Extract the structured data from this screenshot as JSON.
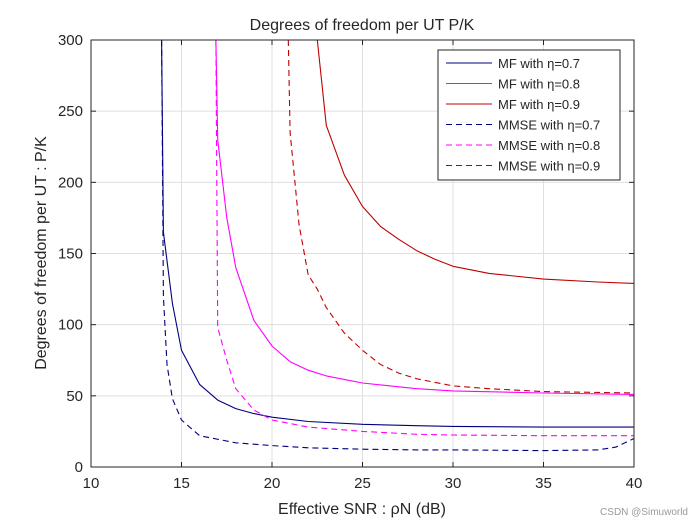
{
  "chart_data": {
    "type": "line",
    "title": "Degrees of freedom per UT P/K",
    "xlabel": "Effective SNR : ρN (dB)",
    "ylabel": "Degrees of freedom per UT : P/K",
    "xlim": [
      10,
      40
    ],
    "ylim": [
      0,
      300
    ],
    "xticks": [
      10,
      15,
      20,
      25,
      30,
      35,
      40
    ],
    "yticks": [
      0,
      50,
      100,
      150,
      200,
      250,
      300
    ],
    "grid": true,
    "legend_position": "top-right",
    "series": [
      {
        "name": "MF with η=0.7",
        "color": "#00007f",
        "style": "solid",
        "x": [
          13.9,
          14.0,
          14.5,
          15.0,
          16.0,
          17.0,
          18.0,
          19.0,
          20.0,
          22.0,
          25.0,
          28.0,
          30.0,
          35.0,
          40.0
        ],
        "y": [
          300,
          165,
          115,
          82,
          58,
          47,
          41,
          37.5,
          35,
          32,
          30,
          29,
          28.5,
          28,
          28
        ]
      },
      {
        "name": "MF with η=0.8",
        "color": "#ff00ff",
        "style": "solid",
        "x": [
          16.9,
          17.0,
          17.5,
          18.0,
          19.0,
          20.0,
          21.0,
          22.0,
          23.0,
          25.0,
          28.0,
          30.0,
          35.0,
          40.0
        ],
        "y": [
          300,
          230,
          175,
          140,
          103,
          85,
          74,
          68,
          64,
          59,
          55,
          53.5,
          52,
          51
        ]
      },
      {
        "name": "MF with η=0.9",
        "color": "#bf0000",
        "style": "solid",
        "x": [
          22.5,
          23.0,
          24.0,
          25.0,
          26.0,
          27.0,
          28.0,
          29.0,
          30.0,
          32.0,
          35.0,
          38.0,
          40.0
        ],
        "y": [
          300,
          240,
          205,
          183,
          169,
          160,
          152,
          146,
          141,
          136,
          132,
          130,
          129
        ]
      },
      {
        "name": "MMSE with η=0.7",
        "color": "#00007f",
        "style": "dashed",
        "x": [
          13.9,
          14.0,
          14.2,
          14.5,
          15.0,
          16.0,
          18.0,
          20.0,
          22.0,
          25.0,
          28.0,
          30.0,
          35.0,
          38.0,
          39.0,
          40.0
        ],
        "y": [
          300,
          120,
          72,
          48,
          33,
          22,
          17,
          15,
          13.5,
          12.5,
          12,
          12,
          11.5,
          12,
          14,
          20
        ]
      },
      {
        "name": "MMSE with η=0.8",
        "color": "#ff00ff",
        "style": "dashed",
        "x": [
          16.9,
          17.0,
          17.5,
          18.0,
          19.0,
          20.0,
          22.0,
          25.0,
          28.0,
          30.0,
          35.0,
          40.0
        ],
        "y": [
          300,
          98,
          75,
          55,
          40,
          33,
          28,
          25,
          23,
          22.5,
          22,
          22
        ]
      },
      {
        "name": "MMSE with η=0.9",
        "color": "#bf0000",
        "style": "dashed",
        "x": [
          20.9,
          21.0,
          21.5,
          22.0,
          22.5,
          23.0,
          24.0,
          25.0,
          26.0,
          27.0,
          28.0,
          30.0,
          32.0,
          35.0,
          40.0
        ],
        "y": [
          300,
          235,
          170,
          135,
          125,
          112,
          94,
          82,
          72,
          66,
          62,
          57,
          55,
          53,
          52
        ]
      }
    ]
  },
  "watermark": "CSDN @Simuworld"
}
